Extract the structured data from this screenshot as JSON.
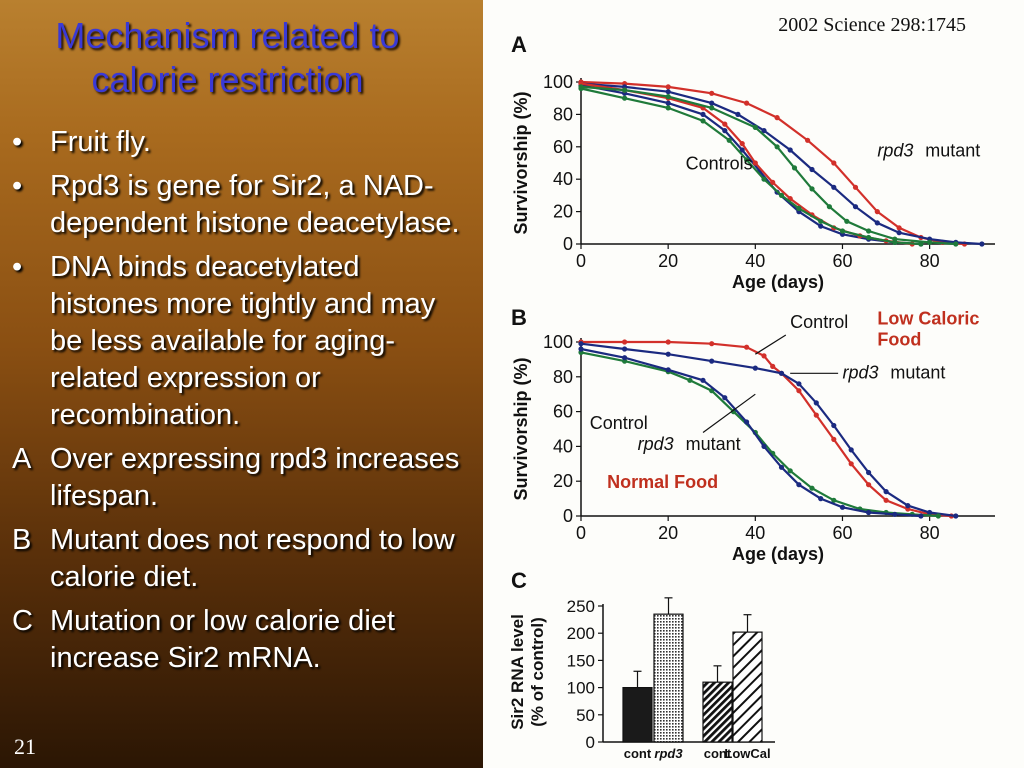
{
  "slide": {
    "title_lines": [
      "Mechanism related to",
      "calorie restriction"
    ],
    "bullets": [
      {
        "marker": "•",
        "text": "Fruit fly."
      },
      {
        "marker": "•",
        "text": "Rpd3 is gene for Sir2, a NAD-dependent histone deacetylase."
      },
      {
        "marker": "•",
        "text": "DNA binds deacetylated histones more tightly and may be less available for aging-related expression or recombination."
      },
      {
        "marker": "A",
        "text": "Over expressing rpd3 increases lifespan."
      },
      {
        "marker": "B",
        "text": "Mutant does not respond to low calorie diet."
      },
      {
        "marker": "C",
        "text": "Mutation or low calorie diet increase Sir2 mRNA."
      }
    ],
    "slide_number": "21",
    "citation": "2002 Science 298:1745"
  },
  "colors": {
    "title": "#3a39d6",
    "red": "#d2302a",
    "navy": "#1b2a80",
    "green": "#1f7a3a",
    "yellow": "#d8c400",
    "annotation_red": "#c0301e"
  },
  "chart_data": [
    {
      "panel": "A",
      "type": "line",
      "xlabel": "Age (days)",
      "ylabel": "Survivorship (%)",
      "xlim": [
        0,
        95
      ],
      "ylim": [
        0,
        100
      ],
      "xticks": [
        0,
        20,
        40,
        60,
        80
      ],
      "yticks": [
        0,
        20,
        40,
        60,
        80,
        100
      ],
      "annotations": [
        {
          "text": "Controls",
          "italic": false,
          "x": 24,
          "y": 46
        },
        {
          "text": "rpd3",
          "italic": true,
          "x": 68,
          "y": 54
        },
        {
          "text": "mutant",
          "italic": false,
          "x": 79,
          "y": 54
        }
      ],
      "series": [
        {
          "color": "#d2302a",
          "points": [
            [
              0,
              100
            ],
            [
              10,
              99
            ],
            [
              20,
              97
            ],
            [
              30,
              93
            ],
            [
              38,
              87
            ],
            [
              45,
              78
            ],
            [
              52,
              64
            ],
            [
              58,
              50
            ],
            [
              63,
              35
            ],
            [
              68,
              20
            ],
            [
              73,
              10
            ],
            [
              78,
              4
            ],
            [
              83,
              1
            ],
            [
              88,
              0
            ]
          ]
        },
        {
          "color": "#1b2a80",
          "points": [
            [
              0,
              99
            ],
            [
              10,
              97
            ],
            [
              20,
              94
            ],
            [
              30,
              87
            ],
            [
              36,
              80
            ],
            [
              42,
              70
            ],
            [
              48,
              58
            ],
            [
              53,
              46
            ],
            [
              58,
              35
            ],
            [
              63,
              23
            ],
            [
              68,
              13
            ],
            [
              73,
              7
            ],
            [
              80,
              3
            ],
            [
              86,
              1
            ],
            [
              92,
              0
            ]
          ]
        },
        {
          "color": "#1b2a80",
          "points": [
            [
              0,
              98
            ],
            [
              10,
              93
            ],
            [
              20,
              87
            ],
            [
              28,
              80
            ],
            [
              33,
              70
            ],
            [
              37,
              58
            ],
            [
              41,
              45
            ],
            [
              45,
              32
            ],
            [
              50,
              20
            ],
            [
              55,
              11
            ],
            [
              60,
              6
            ],
            [
              66,
              3
            ],
            [
              72,
              1
            ],
            [
              78,
              0
            ]
          ]
        },
        {
          "color": "#d2302a",
          "points": [
            [
              0,
              99
            ],
            [
              10,
              95
            ],
            [
              20,
              90
            ],
            [
              28,
              84
            ],
            [
              33,
              74
            ],
            [
              37,
              62
            ],
            [
              40,
              50
            ],
            [
              44,
              38
            ],
            [
              48,
              28
            ],
            [
              53,
              18
            ],
            [
              58,
              10
            ],
            [
              64,
              5
            ],
            [
              70,
              2
            ],
            [
              76,
              0
            ]
          ]
        },
        {
          "color": "#1f7a3a",
          "points": [
            [
              0,
              96
            ],
            [
              10,
              90
            ],
            [
              20,
              84
            ],
            [
              28,
              76
            ],
            [
              34,
              64
            ],
            [
              38,
              52
            ],
            [
              42,
              40
            ],
            [
              46,
              30
            ],
            [
              50,
              22
            ],
            [
              55,
              14
            ],
            [
              60,
              8
            ],
            [
              66,
              4
            ],
            [
              72,
              1
            ],
            [
              78,
              0
            ]
          ]
        },
        {
          "color": "#1f7a3a",
          "points": [
            [
              0,
              97
            ],
            [
              10,
              95
            ],
            [
              20,
              91
            ],
            [
              30,
              84
            ],
            [
              40,
              72
            ],
            [
              45,
              60
            ],
            [
              49,
              47
            ],
            [
              53,
              34
            ],
            [
              57,
              23
            ],
            [
              61,
              14
            ],
            [
              66,
              8
            ],
            [
              72,
              3
            ],
            [
              80,
              1
            ],
            [
              86,
              0
            ]
          ]
        }
      ]
    },
    {
      "panel": "B",
      "type": "line",
      "xlabel": "Age (days)",
      "ylabel": "Survivorship (%)",
      "xlim": [
        0,
        95
      ],
      "ylim": [
        0,
        100
      ],
      "xticks": [
        0,
        20,
        40,
        60,
        80
      ],
      "yticks": [
        0,
        20,
        40,
        60,
        80,
        100
      ],
      "annotations": [
        {
          "text": "Control",
          "italic": false,
          "x": 48,
          "y": 108
        },
        {
          "text": "Low Caloric",
          "italic": false,
          "x": 68,
          "y": 110
        },
        {
          "text": "Food",
          "italic": false,
          "x": 68,
          "y": 98
        },
        {
          "text": "rpd3",
          "italic": true,
          "x": 60,
          "y": 79
        },
        {
          "text": "mutant",
          "italic": false,
          "x": 71,
          "y": 79
        },
        {
          "text": "Control",
          "italic": false,
          "x": 2,
          "y": 50
        },
        {
          "text": "rpd3",
          "italic": true,
          "x": 13,
          "y": 38
        },
        {
          "text": "mutant",
          "italic": false,
          "x": 24,
          "y": 38
        },
        {
          "text": "Normal Food",
          "italic": false,
          "x": 6,
          "y": 16
        }
      ],
      "series": [
        {
          "color": "#d2302a",
          "points": [
            [
              0,
              100
            ],
            [
              10,
              100
            ],
            [
              20,
              100
            ],
            [
              30,
              99
            ],
            [
              38,
              97
            ],
            [
              42,
              92
            ],
            [
              44,
              86
            ],
            [
              46,
              82
            ],
            [
              50,
              72
            ],
            [
              54,
              58
            ],
            [
              58,
              44
            ],
            [
              62,
              30
            ],
            [
              66,
              18
            ],
            [
              70,
              9
            ],
            [
              75,
              4
            ],
            [
              80,
              1
            ],
            [
              85,
              0
            ]
          ]
        },
        {
          "color": "#1b2a80",
          "points": [
            [
              0,
              99
            ],
            [
              10,
              96
            ],
            [
              20,
              93
            ],
            [
              30,
              89
            ],
            [
              40,
              85
            ],
            [
              46,
              82
            ],
            [
              50,
              76
            ],
            [
              54,
              65
            ],
            [
              58,
              52
            ],
            [
              62,
              38
            ],
            [
              66,
              25
            ],
            [
              70,
              14
            ],
            [
              75,
              6
            ],
            [
              80,
              2
            ],
            [
              86,
              0
            ]
          ]
        },
        {
          "color": "#1f7a3a",
          "points": [
            [
              0,
              94
            ],
            [
              10,
              89
            ],
            [
              20,
              83
            ],
            [
              25,
              78
            ],
            [
              30,
              72
            ],
            [
              35,
              60
            ],
            [
              40,
              48
            ],
            [
              44,
              36
            ],
            [
              48,
              26
            ],
            [
              53,
              16
            ],
            [
              58,
              9
            ],
            [
              64,
              4
            ],
            [
              70,
              2
            ],
            [
              76,
              1
            ],
            [
              82,
              0
            ]
          ]
        },
        {
          "color": "#1b2a80",
          "points": [
            [
              0,
              96
            ],
            [
              10,
              91
            ],
            [
              20,
              84
            ],
            [
              28,
              78
            ],
            [
              33,
              68
            ],
            [
              38,
              54
            ],
            [
              42,
              40
            ],
            [
              46,
              28
            ],
            [
              50,
              18
            ],
            [
              55,
              10
            ],
            [
              60,
              5
            ],
            [
              66,
              2
            ],
            [
              72,
              1
            ],
            [
              78,
              0
            ]
          ]
        }
      ]
    },
    {
      "panel": "C",
      "type": "bar",
      "ylabel_lines": [
        "Sir2 RNA level",
        "(% of control)"
      ],
      "ylim": [
        0,
        250
      ],
      "yticks": [
        0,
        50,
        100,
        150,
        200,
        250
      ],
      "categories": [
        "cont",
        "rpd3",
        "cont",
        "LowCal"
      ],
      "category_italic": [
        false,
        true,
        false,
        false
      ],
      "values": [
        100,
        235,
        110,
        202
      ],
      "errors": [
        30,
        30,
        30,
        32
      ],
      "fills": [
        "solid",
        "dotted",
        "hatch-dense",
        "hatch-sparse"
      ]
    }
  ]
}
